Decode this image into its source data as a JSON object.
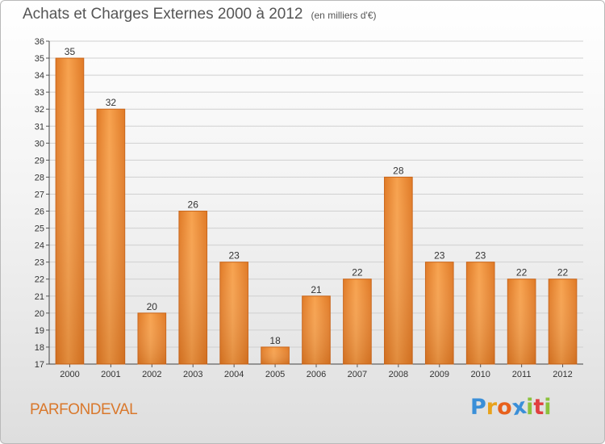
{
  "header": {
    "title": "Achats et Charges Externes 2000 à 2012",
    "subtitle": "(en milliers d'€)"
  },
  "footer": {
    "place": "PARFONDEVAL"
  },
  "logo": {
    "letters": [
      "P",
      "r",
      "o",
      "x",
      "i",
      "t",
      "i"
    ],
    "colors": [
      "#3a8fd8",
      "#e8a21c",
      "#e8611c",
      "#3a8fd8",
      "#8cc23c",
      "#e04040",
      "#8cc23c"
    ]
  },
  "chart_data": {
    "type": "bar",
    "categories": [
      "2000",
      "2001",
      "2002",
      "2003",
      "2004",
      "2005",
      "2006",
      "2007",
      "2008",
      "2009",
      "2010",
      "2011",
      "2012"
    ],
    "values": [
      35,
      32,
      20,
      26,
      23,
      18,
      21,
      22,
      28,
      23,
      23,
      22,
      22
    ],
    "ylim": [
      17,
      36
    ],
    "yticks": [
      17,
      18,
      19,
      20,
      21,
      22,
      23,
      24,
      25,
      26,
      27,
      28,
      29,
      30,
      31,
      32,
      33,
      34,
      35,
      36
    ],
    "grid": true,
    "bar_color": "#f0913a",
    "bar_color_dark": "#d36a1a"
  }
}
